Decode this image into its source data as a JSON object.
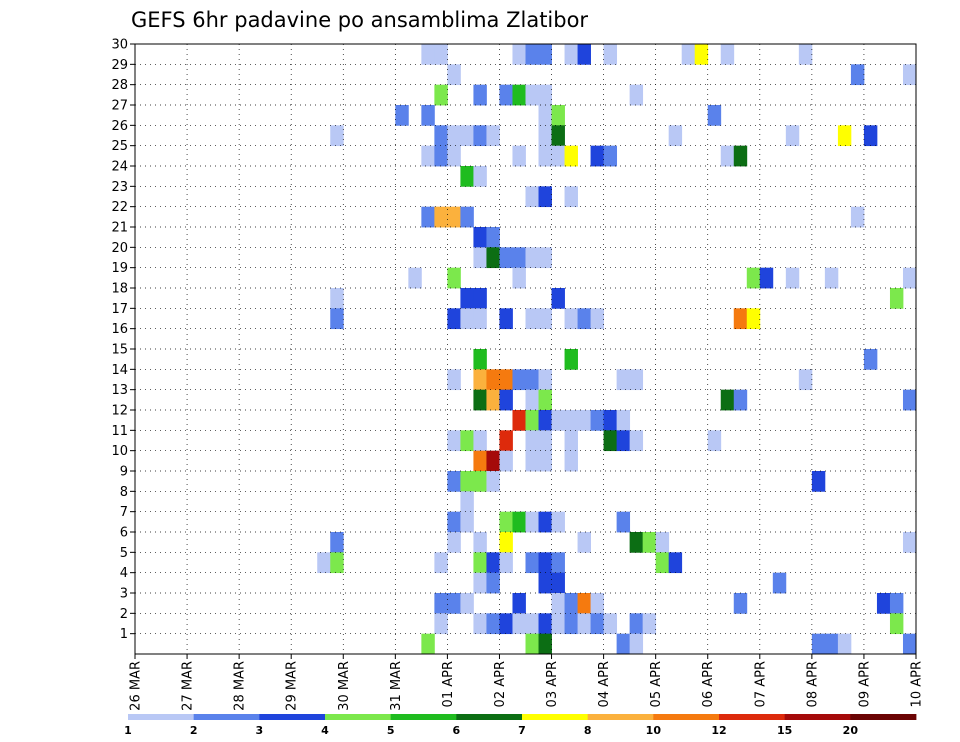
{
  "chart_data": {
    "type": "heatmap",
    "title": "GEFS 6hr padavine po ansamblima Zlatibor",
    "xlabel": "",
    "ylabel": "",
    "x_tick_labels": [
      "26 MAR",
      "27 MAR",
      "28 MAR",
      "29 MAR",
      "30 MAR",
      "31 MAR",
      "01 APR",
      "02 APR",
      "03 APR",
      "04 APR",
      "05 APR",
      "06 APR",
      "07 APR",
      "08 APR",
      "09 APR",
      "10 APR"
    ],
    "y_tick_labels": [
      "1",
      "2",
      "3",
      "4",
      "5",
      "6",
      "7",
      "8",
      "9",
      "10",
      "11",
      "12",
      "13",
      "14",
      "15",
      "16",
      "17",
      "18",
      "19",
      "20",
      "21",
      "22",
      "23",
      "24",
      "25",
      "26",
      "27",
      "28",
      "29",
      "30"
    ],
    "x_range": [
      "26 MAR 00Z",
      "10 APR 00Z"
    ],
    "time_step_hours": 6,
    "grid": true,
    "legend_position": "bottom",
    "colorbar": {
      "bounds": [
        "1",
        "2",
        "3",
        "4",
        "5",
        "6",
        "7",
        "8",
        "10",
        "12",
        "15",
        "20"
      ],
      "colors": [
        "#b9c8f5",
        "#5a82eb",
        "#1f44dc",
        "#7ce84c",
        "#1fbc1f",
        "#0c6e14",
        "#ffff00",
        "#fbb13d",
        "#f57a0f",
        "#dd2a0c",
        "#a50a0a",
        "#6b0404"
      ]
    },
    "cells": [
      {
        "m": 30,
        "t": 22,
        "c": 0
      },
      {
        "m": 30,
        "t": 23,
        "c": 0
      },
      {
        "m": 30,
        "t": 29,
        "c": 0
      },
      {
        "m": 30,
        "t": 30,
        "c": 1
      },
      {
        "m": 30,
        "t": 31,
        "c": 1
      },
      {
        "m": 30,
        "t": 33,
        "c": 0
      },
      {
        "m": 30,
        "t": 34,
        "c": 2
      },
      {
        "m": 30,
        "t": 36,
        "c": 0
      },
      {
        "m": 30,
        "t": 42,
        "c": 0
      },
      {
        "m": 30,
        "t": 43,
        "c": 6
      },
      {
        "m": 30,
        "t": 45,
        "c": 0
      },
      {
        "m": 30,
        "t": 51,
        "c": 0
      },
      {
        "m": 30,
        "t": 60,
        "c": 4
      },
      {
        "m": 29,
        "t": 24,
        "c": 0
      },
      {
        "m": 29,
        "t": 55,
        "c": 1
      },
      {
        "m": 29,
        "t": 59,
        "c": 0
      },
      {
        "m": 28,
        "t": 23,
        "c": 3
      },
      {
        "m": 28,
        "t": 26,
        "c": 1
      },
      {
        "m": 28,
        "t": 28,
        "c": 1
      },
      {
        "m": 28,
        "t": 29,
        "c": 4
      },
      {
        "m": 28,
        "t": 30,
        "c": 0
      },
      {
        "m": 28,
        "t": 31,
        "c": 0
      },
      {
        "m": 28,
        "t": 38,
        "c": 0
      },
      {
        "m": 27,
        "t": 20,
        "c": 1
      },
      {
        "m": 27,
        "t": 22,
        "c": 1
      },
      {
        "m": 27,
        "t": 31,
        "c": 0
      },
      {
        "m": 27,
        "t": 32,
        "c": 3
      },
      {
        "m": 27,
        "t": 44,
        "c": 1
      },
      {
        "m": 26,
        "t": 15,
        "c": 0
      },
      {
        "m": 26,
        "t": 23,
        "c": 1
      },
      {
        "m": 26,
        "t": 24,
        "c": 0
      },
      {
        "m": 26,
        "t": 25,
        "c": 0
      },
      {
        "m": 26,
        "t": 26,
        "c": 1
      },
      {
        "m": 26,
        "t": 27,
        "c": 0
      },
      {
        "m": 26,
        "t": 31,
        "c": 0
      },
      {
        "m": 26,
        "t": 32,
        "c": 5
      },
      {
        "m": 26,
        "t": 41,
        "c": 0
      },
      {
        "m": 26,
        "t": 50,
        "c": 0
      },
      {
        "m": 26,
        "t": 54,
        "c": 6
      },
      {
        "m": 26,
        "t": 56,
        "c": 2
      },
      {
        "m": 25,
        "t": 22,
        "c": 0
      },
      {
        "m": 25,
        "t": 23,
        "c": 1
      },
      {
        "m": 25,
        "t": 24,
        "c": 0
      },
      {
        "m": 25,
        "t": 29,
        "c": 0
      },
      {
        "m": 25,
        "t": 31,
        "c": 0
      },
      {
        "m": 25,
        "t": 32,
        "c": 0
      },
      {
        "m": 25,
        "t": 33,
        "c": 6
      },
      {
        "m": 25,
        "t": 35,
        "c": 2
      },
      {
        "m": 25,
        "t": 36,
        "c": 1
      },
      {
        "m": 25,
        "t": 45,
        "c": 0
      },
      {
        "m": 25,
        "t": 46,
        "c": 5
      },
      {
        "m": 24,
        "t": 25,
        "c": 4
      },
      {
        "m": 24,
        "t": 26,
        "c": 0
      },
      {
        "m": 23,
        "t": 30,
        "c": 0
      },
      {
        "m": 23,
        "t": 31,
        "c": 2
      },
      {
        "m": 23,
        "t": 33,
        "c": 0
      },
      {
        "m": 22,
        "t": 22,
        "c": 1
      },
      {
        "m": 22,
        "t": 23,
        "c": 7
      },
      {
        "m": 22,
        "t": 24,
        "c": 7
      },
      {
        "m": 22,
        "t": 25,
        "c": 1
      },
      {
        "m": 22,
        "t": 55,
        "c": 0
      },
      {
        "m": 21,
        "t": 26,
        "c": 2
      },
      {
        "m": 21,
        "t": 27,
        "c": 1
      },
      {
        "m": 21,
        "t": 60,
        "c": 7
      },
      {
        "m": 21,
        "t": 61,
        "c": 0
      },
      {
        "m": 20,
        "t": 26,
        "c": 0
      },
      {
        "m": 20,
        "t": 27,
        "c": 5
      },
      {
        "m": 20,
        "t": 28,
        "c": 1
      },
      {
        "m": 20,
        "t": 29,
        "c": 1
      },
      {
        "m": 20,
        "t": 30,
        "c": 0
      },
      {
        "m": 20,
        "t": 31,
        "c": 0
      },
      {
        "m": 19,
        "t": 21,
        "c": 0
      },
      {
        "m": 19,
        "t": 24,
        "c": 3
      },
      {
        "m": 19,
        "t": 29,
        "c": 0
      },
      {
        "m": 19,
        "t": 47,
        "c": 3
      },
      {
        "m": 19,
        "t": 48,
        "c": 2
      },
      {
        "m": 19,
        "t": 50,
        "c": 0
      },
      {
        "m": 19,
        "t": 53,
        "c": 0
      },
      {
        "m": 19,
        "t": 59,
        "c": 0
      },
      {
        "m": 19,
        "t": 60,
        "c": 0
      },
      {
        "m": 18,
        "t": 15,
        "c": 0
      },
      {
        "m": 18,
        "t": 25,
        "c": 2
      },
      {
        "m": 18,
        "t": 26,
        "c": 2
      },
      {
        "m": 18,
        "t": 32,
        "c": 2
      },
      {
        "m": 18,
        "t": 58,
        "c": 3
      },
      {
        "m": 17,
        "t": 15,
        "c": 1
      },
      {
        "m": 17,
        "t": 24,
        "c": 2
      },
      {
        "m": 17,
        "t": 25,
        "c": 0
      },
      {
        "m": 17,
        "t": 26,
        "c": 0
      },
      {
        "m": 17,
        "t": 28,
        "c": 2
      },
      {
        "m": 17,
        "t": 30,
        "c": 0
      },
      {
        "m": 17,
        "t": 31,
        "c": 0
      },
      {
        "m": 17,
        "t": 33,
        "c": 0
      },
      {
        "m": 17,
        "t": 34,
        "c": 1
      },
      {
        "m": 17,
        "t": 35,
        "c": 0
      },
      {
        "m": 17,
        "t": 46,
        "c": 8
      },
      {
        "m": 17,
        "t": 47,
        "c": 6
      },
      {
        "m": 16,
        "t": 61,
        "c": 2
      },
      {
        "m": 15,
        "t": 26,
        "c": 4
      },
      {
        "m": 15,
        "t": 33,
        "c": 4
      },
      {
        "m": 15,
        "t": 56,
        "c": 1
      },
      {
        "m": 15,
        "t": 60,
        "c": 0
      },
      {
        "m": 15,
        "t": 61,
        "c": 1
      },
      {
        "m": 14,
        "t": 24,
        "c": 0
      },
      {
        "m": 14,
        "t": 26,
        "c": 7
      },
      {
        "m": 14,
        "t": 27,
        "c": 8
      },
      {
        "m": 14,
        "t": 28,
        "c": 8
      },
      {
        "m": 14,
        "t": 29,
        "c": 1
      },
      {
        "m": 14,
        "t": 30,
        "c": 1
      },
      {
        "m": 14,
        "t": 31,
        "c": 0
      },
      {
        "m": 14,
        "t": 37,
        "c": 0
      },
      {
        "m": 14,
        "t": 38,
        "c": 0
      },
      {
        "m": 14,
        "t": 51,
        "c": 0
      },
      {
        "m": 13,
        "t": 26,
        "c": 5
      },
      {
        "m": 13,
        "t": 27,
        "c": 7
      },
      {
        "m": 13,
        "t": 28,
        "c": 2
      },
      {
        "m": 13,
        "t": 30,
        "c": 0
      },
      {
        "m": 13,
        "t": 31,
        "c": 3
      },
      {
        "m": 13,
        "t": 45,
        "c": 5
      },
      {
        "m": 13,
        "t": 46,
        "c": 1
      },
      {
        "m": 13,
        "t": 59,
        "c": 1
      },
      {
        "m": 13,
        "t": 60,
        "c": 0
      },
      {
        "m": 13,
        "t": 61,
        "c": 4
      },
      {
        "m": 12,
        "t": 29,
        "c": 9
      },
      {
        "m": 12,
        "t": 30,
        "c": 3
      },
      {
        "m": 12,
        "t": 31,
        "c": 2
      },
      {
        "m": 12,
        "t": 32,
        "c": 0
      },
      {
        "m": 12,
        "t": 33,
        "c": 0
      },
      {
        "m": 12,
        "t": 34,
        "c": 0
      },
      {
        "m": 12,
        "t": 35,
        "c": 1
      },
      {
        "m": 12,
        "t": 36,
        "c": 2
      },
      {
        "m": 12,
        "t": 37,
        "c": 0
      },
      {
        "m": 11,
        "t": 24,
        "c": 0
      },
      {
        "m": 11,
        "t": 25,
        "c": 3
      },
      {
        "m": 11,
        "t": 26,
        "c": 0
      },
      {
        "m": 11,
        "t": 28,
        "c": 9
      },
      {
        "m": 11,
        "t": 30,
        "c": 0
      },
      {
        "m": 11,
        "t": 31,
        "c": 0
      },
      {
        "m": 11,
        "t": 33,
        "c": 0
      },
      {
        "m": 11,
        "t": 36,
        "c": 5
      },
      {
        "m": 11,
        "t": 37,
        "c": 2
      },
      {
        "m": 11,
        "t": 38,
        "c": 0
      },
      {
        "m": 11,
        "t": 44,
        "c": 0
      },
      {
        "m": 11,
        "t": 60,
        "c": 0
      },
      {
        "m": 11,
        "t": 61,
        "c": 4
      },
      {
        "m": 10,
        "t": 26,
        "c": 8
      },
      {
        "m": 10,
        "t": 27,
        "c": 10
      },
      {
        "m": 10,
        "t": 28,
        "c": 0
      },
      {
        "m": 10,
        "t": 30,
        "c": 0
      },
      {
        "m": 10,
        "t": 31,
        "c": 0
      },
      {
        "m": 10,
        "t": 33,
        "c": 0
      },
      {
        "m": 9,
        "t": 24,
        "c": 1
      },
      {
        "m": 9,
        "t": 25,
        "c": 3
      },
      {
        "m": 9,
        "t": 26,
        "c": 3
      },
      {
        "m": 9,
        "t": 27,
        "c": 0
      },
      {
        "m": 9,
        "t": 52,
        "c": 2
      },
      {
        "m": 8,
        "t": 25,
        "c": 0
      },
      {
        "m": 8,
        "t": 61,
        "c": 1
      },
      {
        "m": 7,
        "t": 24,
        "c": 1
      },
      {
        "m": 7,
        "t": 25,
        "c": 0
      },
      {
        "m": 7,
        "t": 28,
        "c": 3
      },
      {
        "m": 7,
        "t": 29,
        "c": 4
      },
      {
        "m": 7,
        "t": 30,
        "c": 0
      },
      {
        "m": 7,
        "t": 31,
        "c": 2
      },
      {
        "m": 7,
        "t": 32,
        "c": 0
      },
      {
        "m": 7,
        "t": 37,
        "c": 1
      },
      {
        "m": 6,
        "t": 15,
        "c": 1
      },
      {
        "m": 6,
        "t": 24,
        "c": 0
      },
      {
        "m": 6,
        "t": 26,
        "c": 0
      },
      {
        "m": 6,
        "t": 28,
        "c": 6
      },
      {
        "m": 6,
        "t": 34,
        "c": 0
      },
      {
        "m": 6,
        "t": 38,
        "c": 5
      },
      {
        "m": 6,
        "t": 39,
        "c": 3
      },
      {
        "m": 6,
        "t": 40,
        "c": 0
      },
      {
        "m": 6,
        "t": 59,
        "c": 0
      },
      {
        "m": 5,
        "t": 14,
        "c": 0
      },
      {
        "m": 5,
        "t": 15,
        "c": 3
      },
      {
        "m": 5,
        "t": 23,
        "c": 0
      },
      {
        "m": 5,
        "t": 26,
        "c": 3
      },
      {
        "m": 5,
        "t": 27,
        "c": 2
      },
      {
        "m": 5,
        "t": 28,
        "c": 0
      },
      {
        "m": 5,
        "t": 30,
        "c": 1
      },
      {
        "m": 5,
        "t": 31,
        "c": 2
      },
      {
        "m": 5,
        "t": 32,
        "c": 1
      },
      {
        "m": 5,
        "t": 40,
        "c": 3
      },
      {
        "m": 5,
        "t": 41,
        "c": 2
      },
      {
        "m": 4,
        "t": 26,
        "c": 0
      },
      {
        "m": 4,
        "t": 27,
        "c": 1
      },
      {
        "m": 4,
        "t": 31,
        "c": 2
      },
      {
        "m": 4,
        "t": 32,
        "c": 2
      },
      {
        "m": 4,
        "t": 49,
        "c": 1
      },
      {
        "m": 3,
        "t": 23,
        "c": 1
      },
      {
        "m": 3,
        "t": 24,
        "c": 1
      },
      {
        "m": 3,
        "t": 25,
        "c": 0
      },
      {
        "m": 3,
        "t": 29,
        "c": 2
      },
      {
        "m": 3,
        "t": 32,
        "c": 0
      },
      {
        "m": 3,
        "t": 33,
        "c": 1
      },
      {
        "m": 3,
        "t": 34,
        "c": 8
      },
      {
        "m": 3,
        "t": 35,
        "c": 0
      },
      {
        "m": 3,
        "t": 46,
        "c": 1
      },
      {
        "m": 3,
        "t": 57,
        "c": 2
      },
      {
        "m": 3,
        "t": 58,
        "c": 1
      },
      {
        "m": 2,
        "t": 23,
        "c": 0
      },
      {
        "m": 2,
        "t": 26,
        "c": 0
      },
      {
        "m": 2,
        "t": 27,
        "c": 1
      },
      {
        "m": 2,
        "t": 28,
        "c": 2
      },
      {
        "m": 2,
        "t": 29,
        "c": 0
      },
      {
        "m": 2,
        "t": 30,
        "c": 0
      },
      {
        "m": 2,
        "t": 31,
        "c": 2
      },
      {
        "m": 2,
        "t": 32,
        "c": 0
      },
      {
        "m": 2,
        "t": 33,
        "c": 1
      },
      {
        "m": 2,
        "t": 34,
        "c": 0
      },
      {
        "m": 2,
        "t": 35,
        "c": 1
      },
      {
        "m": 2,
        "t": 36,
        "c": 0
      },
      {
        "m": 2,
        "t": 38,
        "c": 1
      },
      {
        "m": 2,
        "t": 39,
        "c": 0
      },
      {
        "m": 2,
        "t": 58,
        "c": 3
      },
      {
        "m": 2,
        "t": 60,
        "c": 0
      },
      {
        "m": 1,
        "t": 22,
        "c": 3
      },
      {
        "m": 1,
        "t": 30,
        "c": 3
      },
      {
        "m": 1,
        "t": 31,
        "c": 5
      },
      {
        "m": 1,
        "t": 37,
        "c": 1
      },
      {
        "m": 1,
        "t": 38,
        "c": 0
      },
      {
        "m": 1,
        "t": 52,
        "c": 1
      },
      {
        "m": 1,
        "t": 53,
        "c": 1
      },
      {
        "m": 1,
        "t": 54,
        "c": 0
      },
      {
        "m": 1,
        "t": 59,
        "c": 1
      }
    ]
  }
}
